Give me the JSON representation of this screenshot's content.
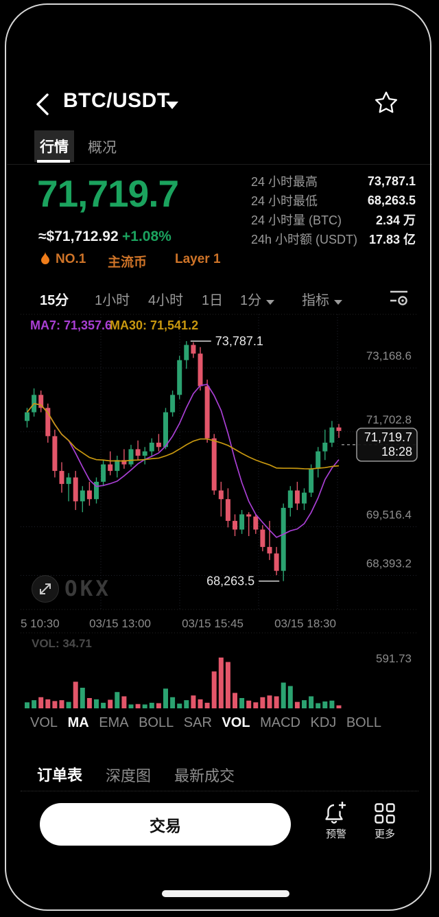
{
  "header": {
    "title": "BTC/USDT"
  },
  "tabs": [
    {
      "label": "行情",
      "active": true
    },
    {
      "label": "概况",
      "active": false
    }
  ],
  "price": {
    "last": "71,719.7",
    "fiat": "≈$71,712.92",
    "change": "+1.08%"
  },
  "badges": [
    {
      "label": "NO.1"
    },
    {
      "label": "主流币"
    },
    {
      "label": "Layer 1"
    }
  ],
  "stats": [
    {
      "label": "24 小时最高",
      "value": "73,787.1"
    },
    {
      "label": "24 小时最低",
      "value": "68,263.5"
    },
    {
      "label": "24 小时量 (BTC)",
      "value": "2.34 万"
    },
    {
      "label": "24h 小时额 (USDT)",
      "value": "17.83 亿"
    }
  ],
  "timeframes": {
    "items": [
      {
        "label": "15分",
        "active": true
      },
      {
        "label": "1小时",
        "active": false
      },
      {
        "label": "4小时",
        "active": false
      },
      {
        "label": "1日",
        "active": false
      },
      {
        "label": "1分",
        "active": false,
        "caret": true
      },
      {
        "label": "指标",
        "active": false,
        "caret": true
      }
    ]
  },
  "chart_data": {
    "type": "candlestick",
    "interval": "15分",
    "ma_legend": [
      {
        "label": "MA7: 71,357.6",
        "color": "#a93fd4"
      },
      {
        "label": "MA30: 71,541.2",
        "color": "#c8980f"
      }
    ],
    "colors": {
      "up": "#2ba371",
      "down": "#e3566a",
      "ma7": "#a93fd4",
      "ma30": "#c8980f"
    },
    "y_axis": [
      {
        "label": "73,168.6",
        "price": 73168.6
      },
      {
        "label": "71,702.8",
        "price": 71702.8
      },
      {
        "label": "69,516.4",
        "price": 69516.4
      },
      {
        "label": "68,393.2",
        "price": 68393.2
      }
    ],
    "x_axis": [
      "5 10:30",
      "03/15 13:00",
      "03/15 15:45",
      "03/15 18:30"
    ],
    "high_annotation": {
      "label": "73,787.1",
      "price": 73787.1,
      "candle": 23
    },
    "low_annotation": {
      "label": "68,263.5",
      "price": 68263.5,
      "candle": 37
    },
    "price_tag": {
      "price_label": "71,719.7",
      "time_label": "18:28",
      "price": 71719.7
    },
    "candles": [
      [
        71950,
        72250,
        71800,
        72150
      ],
      [
        72150,
        72700,
        72050,
        72550
      ],
      [
        72550,
        72650,
        72150,
        72250
      ],
      [
        72250,
        72350,
        71450,
        71600
      ],
      [
        71600,
        71750,
        70650,
        70800
      ],
      [
        70800,
        71000,
        70300,
        70500
      ],
      [
        70500,
        70750,
        70100,
        70650
      ],
      [
        70650,
        70800,
        69900,
        70100
      ],
      [
        70100,
        70450,
        69850,
        70350
      ],
      [
        70350,
        70550,
        70000,
        70150
      ],
      [
        70150,
        70650,
        70050,
        70550
      ],
      [
        70550,
        71050,
        70450,
        70950
      ],
      [
        70950,
        71250,
        70700,
        70800
      ],
      [
        70800,
        71150,
        70650,
        71050
      ],
      [
        71050,
        71300,
        70850,
        70950
      ],
      [
        70950,
        71400,
        70900,
        71300
      ],
      [
        71300,
        71500,
        71050,
        71150
      ],
      [
        71150,
        71350,
        70950,
        71250
      ],
      [
        71250,
        71550,
        71150,
        71450
      ],
      [
        71450,
        71650,
        71250,
        71350
      ],
      [
        71350,
        72250,
        71300,
        72150
      ],
      [
        72150,
        72650,
        72050,
        72550
      ],
      [
        72550,
        73450,
        72450,
        73350
      ],
      [
        73350,
        73787.1,
        73150,
        73700
      ],
      [
        73700,
        73760,
        73400,
        73500
      ],
      [
        73500,
        73650,
        72650,
        72750
      ],
      [
        72750,
        72900,
        71450,
        71550
      ],
      [
        71550,
        71650,
        70250,
        70350
      ],
      [
        70350,
        70550,
        69750,
        70150
      ],
      [
        70150,
        70400,
        69500,
        69650
      ],
      [
        69650,
        69800,
        69300,
        69450
      ],
      [
        69450,
        69900,
        69350,
        69800
      ],
      [
        69800,
        69850,
        69300,
        69750
      ],
      [
        69750,
        69800,
        69350,
        69450
      ],
      [
        69450,
        69550,
        68950,
        69050
      ],
      [
        69050,
        69650,
        68750,
        68900
      ],
      [
        68900,
        69050,
        68400,
        68500
      ],
      [
        68500,
        70050,
        68263.5,
        69950
      ],
      [
        69950,
        70450,
        69750,
        70350
      ],
      [
        70350,
        70550,
        69900,
        70050
      ],
      [
        70050,
        70400,
        69900,
        70300
      ],
      [
        70300,
        70950,
        70200,
        70850
      ],
      [
        70850,
        71350,
        70650,
        71250
      ],
      [
        71250,
        71750,
        71050,
        71450
      ],
      [
        71450,
        71950,
        71350,
        71800
      ],
      [
        71800,
        71880,
        71560,
        71719.7
      ]
    ],
    "volumes": [
      70,
      95,
      130,
      105,
      85,
      95,
      75,
      310,
      240,
      120,
      105,
      65,
      100,
      190,
      140,
      45,
      50,
      45,
      65,
      60,
      230,
      130,
      55,
      95,
      150,
      105,
      65,
      430,
      591.73,
      540,
      180,
      120,
      90,
      70,
      130,
      150,
      140,
      300,
      260,
      75,
      95,
      140,
      60,
      80,
      90,
      34.71
    ],
    "volume_pane": {
      "left_label": "VOL: 34.71",
      "right_label": "591.73",
      "max": 591.73
    }
  },
  "indicators": [
    {
      "label": "VOL",
      "active": false
    },
    {
      "label": "MA",
      "active": true
    },
    {
      "label": "EMA",
      "active": false
    },
    {
      "label": "BOLL",
      "active": false
    },
    {
      "label": "SAR",
      "active": false
    },
    {
      "label": "VOL",
      "active": true
    },
    {
      "label": "MACD",
      "active": false
    },
    {
      "label": "KDJ",
      "active": false
    },
    {
      "label": "BOLL",
      "active": false
    }
  ],
  "orderbook_tabs": [
    {
      "label": "订单表",
      "active": true
    },
    {
      "label": "深度图",
      "active": false
    },
    {
      "label": "最新成交",
      "active": false
    }
  ],
  "actions": {
    "trade_label": "交易",
    "alert_label": "预警",
    "more_label": "更多"
  },
  "watermark": {
    "label": "OKX"
  }
}
